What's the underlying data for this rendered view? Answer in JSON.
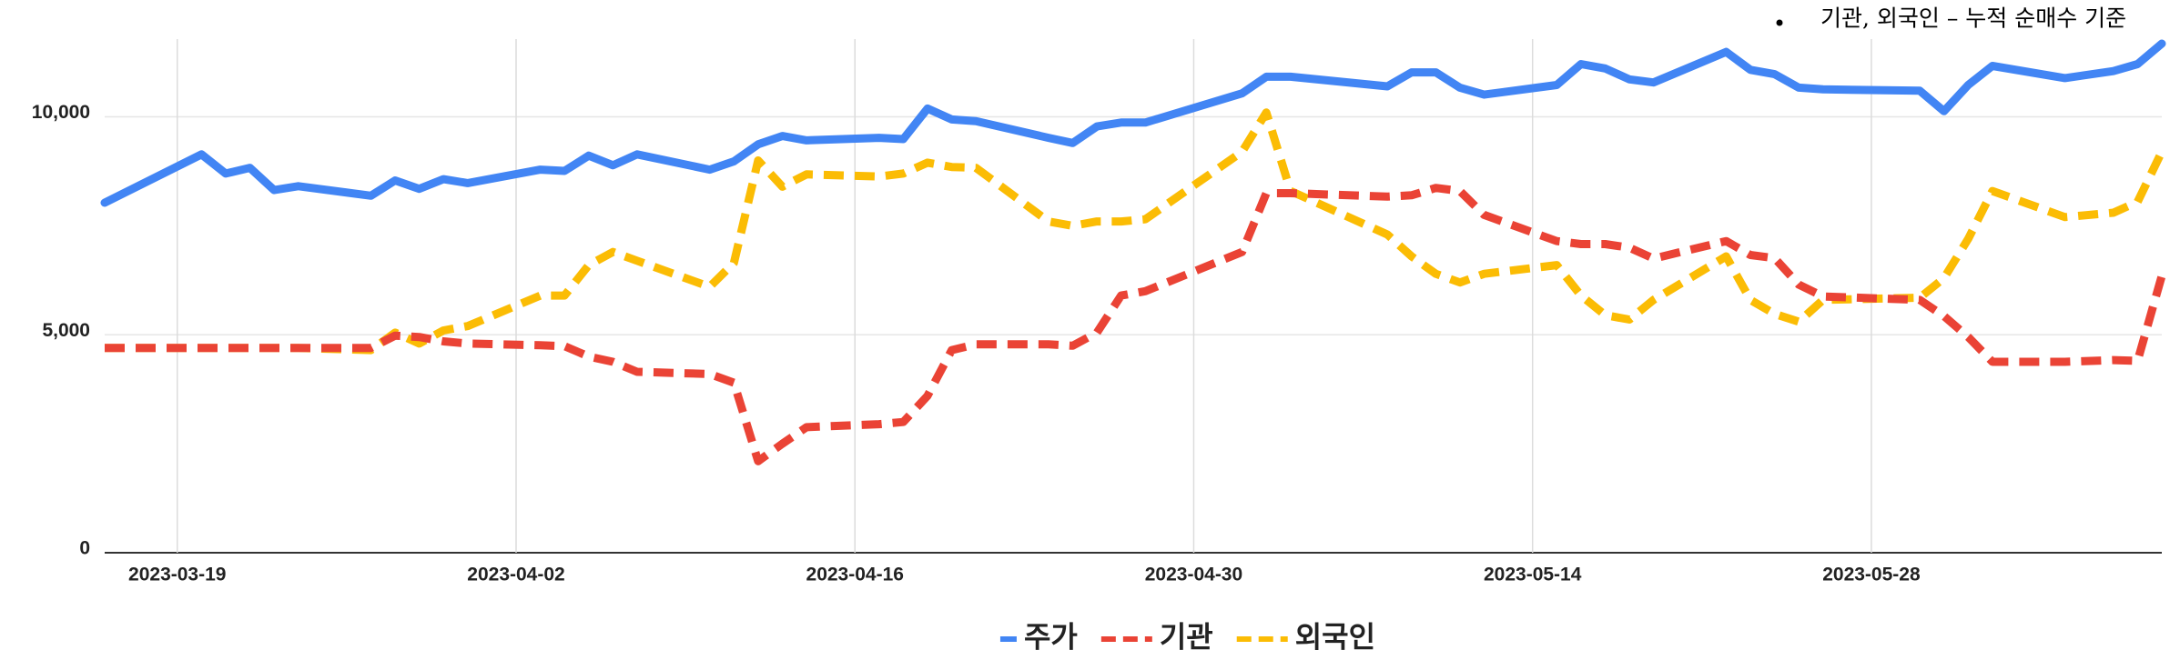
{
  "chart_data": {
    "type": "line",
    "annotation": "기관, 외국인 – 누적 순매수 기준",
    "x": [
      "2023-03-16",
      "2023-03-20",
      "2023-03-21",
      "2023-03-22",
      "2023-03-23",
      "2023-03-24",
      "2023-03-27",
      "2023-03-28",
      "2023-03-29",
      "2023-03-30",
      "2023-03-31",
      "2023-04-03",
      "2023-04-04",
      "2023-04-05",
      "2023-04-06",
      "2023-04-07",
      "2023-04-10",
      "2023-04-11",
      "2023-04-12",
      "2023-04-13",
      "2023-04-14",
      "2023-04-17",
      "2023-04-18",
      "2023-04-19",
      "2023-04-20",
      "2023-04-21",
      "2023-04-24",
      "2023-04-25",
      "2023-04-26",
      "2023-04-27",
      "2023-04-28",
      "2023-05-02",
      "2023-05-03",
      "2023-05-04",
      "2023-05-08",
      "2023-05-09",
      "2023-05-10",
      "2023-05-11",
      "2023-05-12",
      "2023-05-15",
      "2023-05-16",
      "2023-05-17",
      "2023-05-18",
      "2023-05-19",
      "2023-05-22",
      "2023-05-23",
      "2023-05-24",
      "2023-05-25",
      "2023-05-26",
      "2023-05-30",
      "2023-05-31",
      "2023-06-01",
      "2023-06-02",
      "2023-06-05",
      "2023-06-07",
      "2023-06-08",
      "2023-06-09"
    ],
    "series": [
      {
        "name": "주가",
        "color": "#4285f4",
        "dashed": false,
        "values": [
          8030,
          9140,
          8700,
          8830,
          8320,
          8410,
          8190,
          8540,
          8350,
          8570,
          8480,
          8790,
          8760,
          9110,
          8890,
          9140,
          8790,
          8980,
          9370,
          9560,
          9460,
          9520,
          9490,
          10190,
          9940,
          9900,
          9520,
          9400,
          9780,
          9870,
          9870,
          10540,
          10920,
          10920,
          10700,
          11020,
          11020,
          10670,
          10510,
          10730,
          11210,
          11110,
          10860,
          10790,
          11490,
          11080,
          10980,
          10670,
          10630,
          10600,
          10130,
          10730,
          11170,
          10890,
          11050,
          11210,
          11680
        ]
      },
      {
        "name": "기관",
        "color": "#ea4335",
        "dashed": true,
        "values": [
          4700,
          4700,
          4700,
          4700,
          4700,
          4700,
          4700,
          4980,
          4950,
          4850,
          4800,
          4760,
          4740,
          4500,
          4380,
          4150,
          4100,
          3900,
          2100,
          2500,
          2880,
          2950,
          3000,
          3600,
          4650,
          4780,
          4780,
          4750,
          5050,
          5900,
          6000,
          6900,
          8250,
          8250,
          8170,
          8200,
          8370,
          8300,
          7750,
          7150,
          7080,
          7080,
          7000,
          6750,
          7150,
          6830,
          6760,
          6150,
          5880,
          5800,
          5430,
          4950,
          4380,
          4380,
          4420,
          4400,
          6350
        ]
      },
      {
        "name": "외국인",
        "color": "#fbbc04",
        "dashed": true,
        "values": [
          4700,
          4700,
          4700,
          4700,
          4700,
          4700,
          4650,
          5050,
          4800,
          5100,
          5200,
          5900,
          5900,
          6600,
          6900,
          6700,
          6100,
          6650,
          9000,
          8400,
          8680,
          8630,
          8700,
          8950,
          8850,
          8830,
          7600,
          7500,
          7600,
          7600,
          7650,
          9200,
          10100,
          8300,
          7300,
          6800,
          6400,
          6200,
          6400,
          6600,
          5900,
          5450,
          5350,
          5800,
          6800,
          5800,
          5480,
          5300,
          5800,
          5850,
          6300,
          7200,
          8300,
          7700,
          7800,
          8050,
          9200
        ]
      }
    ],
    "xlim": [
      "2023-03-16",
      "2023-06-09"
    ],
    "xticks": [
      "2023-03-19",
      "2023-04-02",
      "2023-04-16",
      "2023-04-30",
      "2023-05-14",
      "2023-05-28"
    ],
    "ylim": [
      0,
      11680
    ],
    "yticks": [
      0,
      {
        "value": 5000,
        "label": "5,000"
      },
      {
        "value": 10000,
        "label": "10,000"
      }
    ],
    "grid": true,
    "legend": "bottom"
  }
}
